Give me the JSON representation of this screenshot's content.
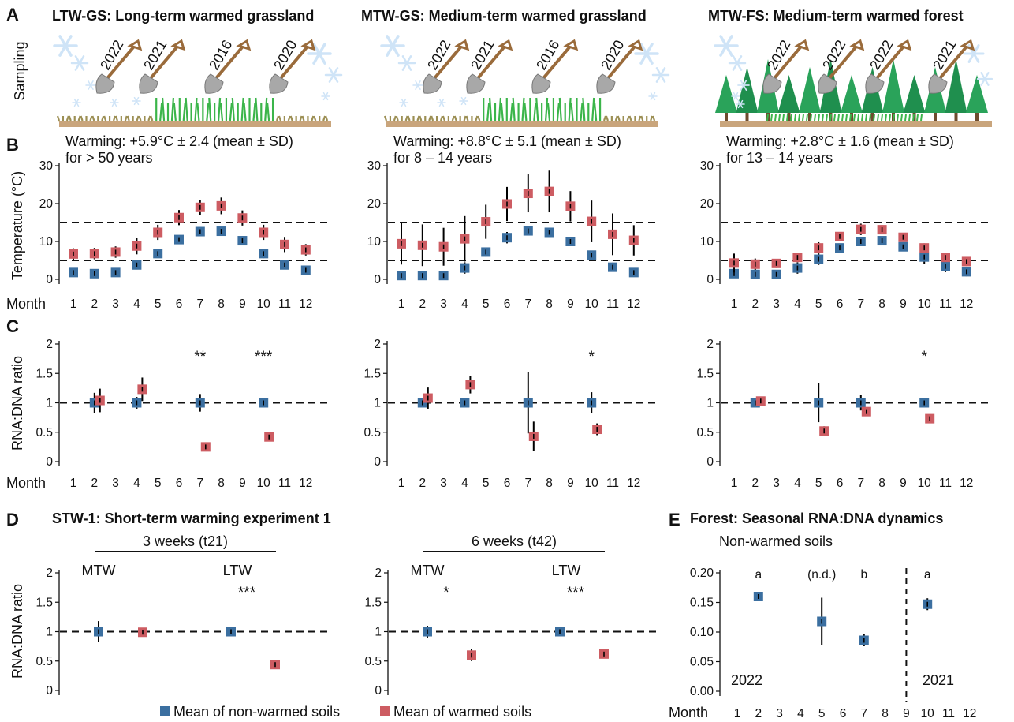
{
  "colors": {
    "non_warmed": "#3b6fa0",
    "warmed": "#cd5c62",
    "errorbar": "#000000",
    "sky": "#cfe4f7",
    "soil": "#c9a57c",
    "grass_dark": "#9c8f54",
    "grass_green": "#3bb54a",
    "tree": "#1f8f4e"
  },
  "panel_labels": [
    "A",
    "B",
    "C",
    "D",
    "E"
  ],
  "sampling_label": "Sampling",
  "sites": [
    {
      "id": "LTW-GS",
      "title": "LTW-GS: Long-term warmed grassland",
      "shovel_years": [
        "2022",
        "2021",
        "2016",
        "2020"
      ],
      "type": "grassland",
      "warming_line1": "Warming: +5.9°C ± 2.4 (mean ± SD)",
      "warming_line2": "for > 50 years"
    },
    {
      "id": "MTW-GS",
      "title": "MTW-GS: Medium-term warmed grassland",
      "shovel_years": [
        "2022",
        "2021",
        "2016",
        "2020"
      ],
      "type": "grassland",
      "warming_line1": "Warming: +8.8°C ± 5.1 (mean ± SD)",
      "warming_line2": "for 8 – 14 years"
    },
    {
      "id": "MTW-FS",
      "title": "MTW-FS: Medium-term warmed forest",
      "shovel_years": [
        "2022",
        "2022",
        "2022",
        "2021"
      ],
      "type": "forest",
      "warming_line1": "Warming: +2.8°C ± 1.6 (mean ± SD)",
      "warming_line2": "for 13 – 14 years"
    }
  ],
  "legend": {
    "non_warmed": "Mean of non-warmed soils",
    "warmed": "Mean of warmed soils"
  },
  "chart_data": [
    {
      "panel": "B",
      "site": "LTW-GS",
      "type": "scatter",
      "ylabel": "Temperature (°C)",
      "xlabel": "Month",
      "ylim": [
        0,
        30
      ],
      "yticks": [
        0,
        10,
        20,
        30
      ],
      "hlines": [
        5,
        15
      ],
      "categories": [
        "1",
        "2",
        "3",
        "4",
        "5",
        "6",
        "7",
        "8",
        "9",
        "10",
        "11",
        "12"
      ],
      "series": [
        {
          "values": [
            1.8,
            1.5,
            1.8,
            3.8,
            6.8,
            10.5,
            12.6,
            12.7,
            10.2,
            6.8,
            3.8,
            2.4
          ],
          "err": [
            0.8,
            0.8,
            0.8,
            1.2,
            1,
            1,
            1,
            1,
            1.2,
            1.2,
            1,
            1
          ]
        },
        {
          "values": [
            6.7,
            6.8,
            7.2,
            8.8,
            12.4,
            16.3,
            19,
            19.4,
            16.2,
            12.4,
            9.2,
            7.8
          ],
          "err": [
            1.5,
            1.5,
            1.5,
            2.2,
            2,
            2,
            2,
            2.2,
            2,
            2,
            2,
            1.5
          ]
        }
      ]
    },
    {
      "panel": "B",
      "site": "MTW-GS",
      "type": "scatter",
      "ylabel": "",
      "xlabel": "Month",
      "ylim": [
        0,
        30
      ],
      "yticks": [
        0,
        10,
        20,
        30
      ],
      "hlines": [
        5,
        15
      ],
      "categories": [
        "1",
        "2",
        "3",
        "4",
        "5",
        "6",
        "7",
        "8",
        "9",
        "10",
        "11",
        "12"
      ],
      "series": [
        {
          "values": [
            1,
            1,
            1,
            3,
            7.2,
            11,
            12.8,
            12.4,
            10,
            6.4,
            3.2,
            1.8
          ],
          "err": [
            0.8,
            0.8,
            0.8,
            1.5,
            1.2,
            1.5,
            1,
            1,
            1.2,
            1.2,
            1.2,
            1
          ]
        },
        {
          "values": [
            9.4,
            9,
            8.6,
            10.7,
            15.2,
            19.9,
            22.7,
            23.2,
            19.3,
            15.3,
            11.9,
            10.3
          ],
          "err": [
            5.5,
            5.5,
            5,
            6,
            4.5,
            4.5,
            5,
            5.5,
            4,
            5.5,
            5.5,
            4
          ]
        }
      ]
    },
    {
      "panel": "B",
      "site": "MTW-FS",
      "type": "scatter",
      "ylabel": "",
      "xlabel": "Month",
      "ylim": [
        0,
        30
      ],
      "yticks": [
        0,
        10,
        20,
        30
      ],
      "hlines": [
        5,
        15
      ],
      "categories": [
        "1",
        "2",
        "3",
        "4",
        "5",
        "6",
        "7",
        "8",
        "9",
        "10",
        "11",
        "12"
      ],
      "series": [
        {
          "values": [
            1.5,
            1.3,
            1.3,
            3,
            5.3,
            8.3,
            10,
            10.2,
            8.6,
            5.9,
            3.4,
            2
          ],
          "err": [
            1,
            1,
            0.8,
            1.5,
            1.5,
            1,
            1,
            1,
            1.2,
            1.8,
            1.5,
            1.2
          ]
        },
        {
          "values": [
            4.3,
            4,
            4.2,
            5.8,
            8.3,
            11.3,
            13.2,
            13.1,
            11.1,
            8.3,
            5.8,
            4.7
          ],
          "err": [
            2.5,
            1.5,
            1.2,
            1.2,
            1.5,
            1.2,
            1.5,
            1.2,
            1,
            1.2,
            1.2,
            1.2
          ]
        }
      ]
    },
    {
      "panel": "C",
      "site": "LTW-GS",
      "type": "scatter",
      "ylabel": "RNA:DNA ratio",
      "xlabel": "Month",
      "ylim": [
        0,
        2
      ],
      "yticks": [
        0,
        0.5,
        1,
        1.5,
        2
      ],
      "hlines": [
        1
      ],
      "categories": [
        "1",
        "2",
        "3",
        "4",
        "5",
        "6",
        "7",
        "8",
        "9",
        "10",
        "11",
        "12"
      ],
      "series": [
        {
          "x": [
            2,
            4,
            7,
            10
          ],
          "values": [
            1,
            1,
            1,
            1
          ],
          "err": [
            0.17,
            0.1,
            0.15,
            0.05
          ]
        },
        {
          "x": [
            2,
            4,
            7,
            10
          ],
          "values": [
            1.04,
            1.23,
            0.25,
            0.42
          ],
          "err": [
            0.2,
            0.2,
            0.03,
            0.03
          ]
        }
      ],
      "annotations": [
        {
          "x": 7,
          "text": "**"
        },
        {
          "x": 10,
          "text": "***"
        }
      ]
    },
    {
      "panel": "C",
      "site": "MTW-GS",
      "type": "scatter",
      "ylabel": "",
      "xlabel": "",
      "ylim": [
        0,
        2
      ],
      "yticks": [
        0,
        0.5,
        1,
        1.5,
        2
      ],
      "hlines": [
        1
      ],
      "categories": [
        "1",
        "2",
        "3",
        "4",
        "5",
        "6",
        "7",
        "8",
        "9",
        "10",
        "11",
        "12"
      ],
      "series": [
        {
          "x": [
            2,
            4,
            7,
            10
          ],
          "values": [
            1,
            1,
            1,
            1
          ],
          "err": [
            0.05,
            0.08,
            0.52,
            0.18
          ]
        },
        {
          "x": [
            2,
            4,
            7,
            10
          ],
          "values": [
            1.08,
            1.31,
            0.43,
            0.55
          ],
          "err": [
            0.18,
            0.15,
            0.25,
            0.1
          ]
        }
      ],
      "annotations": [
        {
          "x": 10,
          "text": "*"
        }
      ]
    },
    {
      "panel": "C",
      "site": "MTW-FS",
      "type": "scatter",
      "ylabel": "",
      "xlabel": "",
      "ylim": [
        0,
        2
      ],
      "yticks": [
        0,
        0.5,
        1,
        1.5,
        2
      ],
      "hlines": [
        1
      ],
      "categories": [
        "1",
        "2",
        "3",
        "4",
        "5",
        "6",
        "7",
        "8",
        "9",
        "10",
        "11",
        "12"
      ],
      "series": [
        {
          "x": [
            2,
            5,
            7,
            10
          ],
          "values": [
            1,
            1,
            1,
            1
          ],
          "err": [
            0.06,
            0.33,
            0.13,
            0.04
          ]
        },
        {
          "x": [
            2,
            5,
            7,
            10
          ],
          "values": [
            1.03,
            0.52,
            0.85,
            0.73
          ],
          "err": [
            0.07,
            0.08,
            0.05,
            0.04
          ]
        }
      ],
      "annotations": [
        {
          "x": 10,
          "text": "*"
        }
      ]
    },
    {
      "panel": "D",
      "title": "STW-1: Short-term warming experiment 1",
      "group_label": "3 weeks (t21)",
      "type": "scatter",
      "ylabel": "RNA:DNA ratio",
      "ylim": [
        0,
        2
      ],
      "yticks": [
        0,
        0.5,
        1,
        1.5,
        2
      ],
      "hlines": [
        1
      ],
      "categories": [
        "MTW",
        "LTW"
      ],
      "series": [
        {
          "values": [
            1,
            1
          ],
          "err": [
            0.18,
            0.04
          ]
        },
        {
          "values": [
            0.99,
            0.44
          ],
          "err": [
            0.05,
            0.03
          ]
        }
      ],
      "annotations": [
        {
          "category": "LTW",
          "text": "***"
        }
      ]
    },
    {
      "panel": "D",
      "group_label": "6 weeks (t42)",
      "type": "scatter",
      "ylabel": "",
      "ylim": [
        0,
        2
      ],
      "yticks": [
        0,
        0.5,
        1,
        1.5,
        2
      ],
      "hlines": [
        1
      ],
      "categories": [
        "MTW",
        "LTW"
      ],
      "series": [
        {
          "values": [
            1,
            1
          ],
          "err": [
            0.1,
            0.04
          ]
        },
        {
          "values": [
            0.6,
            0.62
          ],
          "err": [
            0.1,
            0.05
          ]
        }
      ],
      "annotations": [
        {
          "category": "MTW",
          "text": "*"
        },
        {
          "category": "LTW",
          "text": "***"
        }
      ]
    },
    {
      "panel": "E",
      "title": "Forest: Seasonal RNA:DNA dynamics",
      "subtitle": "Non-warmed soils",
      "type": "scatter",
      "xlabel": "Month",
      "ylim": [
        0,
        0.2
      ],
      "yticks": [
        0,
        0.05,
        0.1,
        0.15,
        0.2
      ],
      "categories": [
        "1",
        "2",
        "3",
        "4",
        "5",
        "6",
        "7",
        "8",
        "9",
        "10",
        "11",
        "12"
      ],
      "vline": 9,
      "year_labels": [
        "2022",
        "2021"
      ],
      "series": [
        {
          "x": [
            2,
            5,
            7,
            10
          ],
          "values": [
            0.16,
            0.118,
            0.086,
            0.147
          ],
          "err": [
            0.008,
            0.04,
            0.01,
            0.01
          ]
        }
      ],
      "annotations": [
        {
          "x": 2,
          "text": "a"
        },
        {
          "x": 5,
          "text": "(n.d.)"
        },
        {
          "x": 7,
          "text": "b"
        },
        {
          "x": 10,
          "text": "a"
        }
      ]
    }
  ]
}
